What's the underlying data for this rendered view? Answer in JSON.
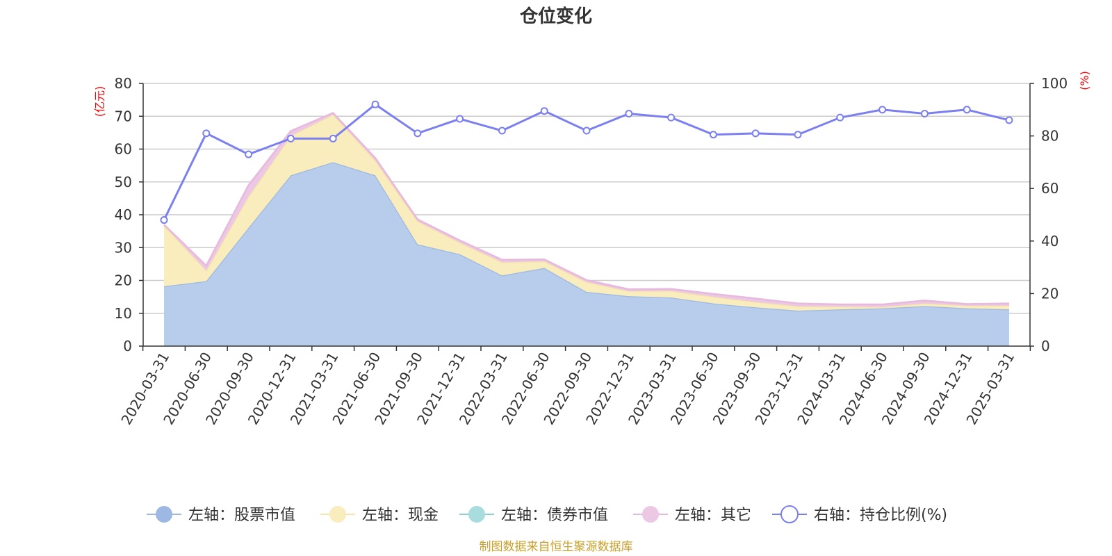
{
  "title": "仓位变化",
  "source_note": "制图数据来自恒生聚源数据库",
  "left_axis_unit": "(亿元)",
  "right_axis_unit": "(%)",
  "chart_data": {
    "type": "area",
    "title": "仓位变化",
    "categories": [
      "2020-03-31",
      "2020-06-30",
      "2020-09-30",
      "2020-12-31",
      "2021-03-31",
      "2021-06-30",
      "2021-09-30",
      "2021-12-31",
      "2022-03-31",
      "2022-06-30",
      "2022-09-30",
      "2022-12-31",
      "2023-03-31",
      "2023-06-30",
      "2023-09-30",
      "2023-12-31",
      "2024-03-31",
      "2024-06-30",
      "2024-09-30",
      "2024-12-31",
      "2025-03-31"
    ],
    "left_axis": {
      "unit": "(亿元)",
      "ylim": [
        0,
        80
      ],
      "ticks": [
        0,
        10,
        20,
        30,
        40,
        50,
        60,
        70,
        80
      ]
    },
    "right_axis": {
      "unit": "(%)",
      "ylim": [
        0,
        100
      ],
      "ticks": [
        0,
        20,
        40,
        60,
        80,
        100
      ]
    },
    "grid": true,
    "legend_position": "bottom",
    "series": [
      {
        "name": "左轴：股票市值",
        "axis": "left",
        "type": "area",
        "color": "#9db8e2",
        "fill": "#b8cdeb",
        "values": [
          18.2,
          19.8,
          36.0,
          52.0,
          56.0,
          52.0,
          31.0,
          28.0,
          21.5,
          23.8,
          16.5,
          15.2,
          14.8,
          13.0,
          11.8,
          10.8,
          11.2,
          11.5,
          12.2,
          11.5,
          11.2
        ]
      },
      {
        "name": "左轴：现金",
        "axis": "left",
        "type": "area",
        "color": "#f7e6a8",
        "fill": "#f9edbd",
        "values": [
          18.5,
          3.2,
          9.5,
          12.0,
          14.5,
          4.5,
          7.0,
          3.5,
          4.0,
          2.0,
          3.0,
          1.5,
          2.0,
          2.0,
          1.6,
          1.3,
          0.8,
          0.4,
          0.8,
          0.8,
          1.1
        ]
      },
      {
        "name": "左轴：债券市值",
        "axis": "left",
        "type": "area",
        "color": "#8ed0d2",
        "fill": "#a8dcdd",
        "values": [
          0,
          0,
          0,
          0,
          0,
          0,
          0,
          0,
          0,
          0,
          0,
          0,
          0,
          0,
          0,
          0,
          0,
          0,
          0,
          0,
          0
        ]
      },
      {
        "name": "左轴：其它",
        "axis": "left",
        "type": "area",
        "color": "#e7b9dc",
        "fill": "#ecc8e4",
        "values": [
          0.3,
          1.5,
          3.5,
          1.5,
          0.5,
          0.8,
          0.6,
          0.7,
          0.8,
          0.6,
          0.6,
          0.6,
          0.6,
          0.9,
          1.1,
          0.9,
          0.7,
          0.8,
          0.9,
          0.5,
          0.7
        ]
      },
      {
        "name": "右轴：持仓比例(%)",
        "axis": "right",
        "type": "line",
        "color": "#7b7ff0",
        "values": [
          48,
          81,
          73,
          79,
          79,
          92,
          81,
          86.5,
          82,
          89.5,
          82,
          88.5,
          87,
          80.5,
          81,
          80.5,
          87,
          90,
          88.5,
          90,
          86
        ]
      }
    ]
  }
}
